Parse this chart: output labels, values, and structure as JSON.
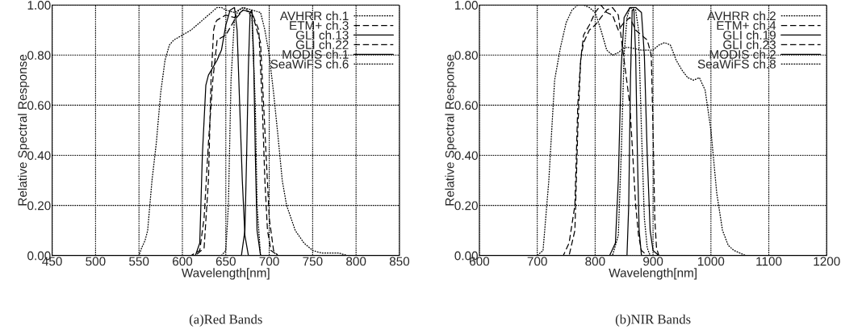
{
  "chart_data": [
    {
      "type": "line",
      "xlabel": "Wavelength[nm]",
      "ylabel": "Relative Spectral Response",
      "annotations": [
        "(a)Red Bands"
      ],
      "xlim": [
        450,
        850
      ],
      "xticks": [
        450,
        500,
        550,
        600,
        650,
        700,
        750,
        800,
        850
      ],
      "ylim": [
        0,
        1
      ],
      "yticks": [
        {
          "value": 0,
          "label": "0.00"
        },
        {
          "value": 0.2,
          "label": "0.20"
        },
        {
          "value": 0.4,
          "label": "0.40"
        },
        {
          "value": 0.6,
          "label": "0.60"
        },
        {
          "value": 0.8,
          "label": "0.80"
        },
        {
          "value": 1,
          "label": "1.00"
        }
      ],
      "grid": true,
      "legend": "top right",
      "marker": "none",
      "series": [
        {
          "name": "AVHRR ch.1",
          "color": "#000000",
          "line_style": "dotted",
          "x": [
            450,
            550,
            553,
            557,
            560,
            565,
            570,
            575,
            580,
            585,
            590,
            600,
            610,
            620,
            630,
            640,
            645,
            650,
            660,
            670,
            680,
            690,
            695,
            700,
            705,
            710,
            715,
            720,
            730,
            740,
            750,
            760,
            780,
            790,
            850
          ],
          "values": [
            0,
            0,
            0.03,
            0.06,
            0.1,
            0.3,
            0.45,
            0.65,
            0.78,
            0.84,
            0.86,
            0.88,
            0.9,
            0.93,
            0.96,
            0.99,
            0.99,
            0.98,
            0.97,
            0.99,
            0.98,
            0.97,
            0.9,
            0.8,
            0.65,
            0.48,
            0.3,
            0.2,
            0.1,
            0.05,
            0.02,
            0.01,
            0.01,
            0,
            0
          ]
        },
        {
          "name": "ETM+ ch.3",
          "color": "#000000",
          "line_style": "dashed",
          "x": [
            450,
            615,
            625,
            630,
            633,
            636,
            638,
            640,
            650,
            660,
            670,
            680,
            688,
            692,
            695,
            698,
            702,
            710,
            850
          ],
          "values": [
            0,
            0,
            0.03,
            0.3,
            0.7,
            0.9,
            0.93,
            0.94,
            0.96,
            0.95,
            0.98,
            0.97,
            0.9,
            0.6,
            0.3,
            0.1,
            0.02,
            0,
            0
          ]
        },
        {
          "name": "GLI ch.13",
          "color": "#000000",
          "line_style": "solid",
          "x": [
            450,
            668,
            672,
            674,
            676,
            678,
            680,
            682,
            684,
            686,
            690,
            850
          ],
          "values": [
            0,
            0,
            0.1,
            0.4,
            0.75,
            0.97,
            0.98,
            0.8,
            0.4,
            0.1,
            0,
            0
          ]
        },
        {
          "name": "GLI ch.22",
          "color": "#000000",
          "line_style": "dashed",
          "x": [
            450,
            610,
            620,
            625,
            630,
            635,
            640,
            645,
            650,
            660,
            670,
            680,
            690,
            695,
            700,
            705,
            710,
            850
          ],
          "values": [
            0,
            0,
            0.02,
            0.15,
            0.45,
            0.7,
            0.86,
            0.87,
            0.88,
            0.94,
            0.98,
            0.97,
            0.85,
            0.5,
            0.15,
            0.02,
            0,
            0
          ]
        },
        {
          "name": "MODIS ch.1",
          "color": "#000000",
          "line_style": "solid",
          "x": [
            450,
            615,
            620,
            623,
            627,
            630,
            640,
            645,
            650,
            655,
            660,
            663,
            666,
            669,
            672,
            676,
            850
          ],
          "values": [
            0,
            0,
            0.05,
            0.4,
            0.68,
            0.72,
            0.78,
            0.82,
            0.92,
            0.98,
            0.99,
            0.9,
            0.6,
            0.3,
            0.08,
            0,
            0
          ]
        },
        {
          "name": "SeaWiFS ch.6",
          "color": "#000000",
          "line_style": "dotted",
          "x": [
            450,
            645,
            650,
            653,
            656,
            660,
            665,
            670,
            675,
            680,
            684,
            686,
            690,
            850
          ],
          "values": [
            0,
            0,
            0.02,
            0.2,
            0.7,
            0.95,
            0.98,
            0.99,
            0.98,
            0.95,
            0.6,
            0.2,
            0,
            0
          ]
        }
      ]
    },
    {
      "type": "line",
      "xlabel": "Wavelength[nm]",
      "ylabel": "Relative Spectral Response",
      "annotations": [
        "(b)NIR Bands"
      ],
      "xlim": [
        600,
        1200
      ],
      "xticks": [
        600,
        700,
        800,
        900,
        1000,
        1100,
        1200
      ],
      "ylim": [
        0,
        1
      ],
      "yticks": [
        {
          "value": 0,
          "label": "0.00"
        },
        {
          "value": 0.2,
          "label": "0.20"
        },
        {
          "value": 0.4,
          "label": "0.40"
        },
        {
          "value": 0.6,
          "label": "0.60"
        },
        {
          "value": 0.8,
          "label": "0.80"
        },
        {
          "value": 1,
          "label": "1.00"
        }
      ],
      "grid": true,
      "legend": "top right",
      "marker": "none",
      "series": [
        {
          "name": "AVHRR ch.2",
          "color": "#000000",
          "line_style": "dotted",
          "x": [
            600,
            700,
            710,
            720,
            730,
            740,
            750,
            760,
            770,
            780,
            790,
            800,
            810,
            820,
            830,
            840,
            850,
            860,
            880,
            900,
            910,
            920,
            930,
            940,
            950,
            960,
            970,
            980,
            990,
            1000,
            1010,
            1020,
            1030,
            1040,
            1050,
            1060,
            1200
          ],
          "values": [
            0,
            0,
            0.02,
            0.3,
            0.7,
            0.83,
            0.93,
            0.98,
            1,
            1,
            0.99,
            0.97,
            0.9,
            0.82,
            0.8,
            0.81,
            0.83,
            0.83,
            0.82,
            0.82,
            0.84,
            0.85,
            0.84,
            0.78,
            0.74,
            0.71,
            0.7,
            0.71,
            0.66,
            0.5,
            0.25,
            0.1,
            0.04,
            0.02,
            0.01,
            0,
            0
          ]
        },
        {
          "name": "ETM+ ch.4",
          "color": "#000000",
          "line_style": "dashed",
          "x": [
            600,
            755,
            765,
            770,
            775,
            780,
            790,
            800,
            810,
            820,
            830,
            840,
            850,
            860,
            870,
            880,
            890,
            897,
            900,
            903,
            906,
            910,
            1200
          ],
          "values": [
            0,
            0,
            0.1,
            0.5,
            0.78,
            0.88,
            0.92,
            0.97,
            1,
            0.97,
            0.96,
            0.9,
            0.93,
            0.95,
            0.9,
            0.88,
            0.86,
            0.8,
            0.5,
            0.15,
            0.03,
            0,
            0
          ]
        },
        {
          "name": "GLI ch.19",
          "color": "#000000",
          "line_style": "solid",
          "x": [
            600,
            855,
            858,
            861,
            864,
            867,
            870,
            873,
            876,
            880,
            1200
          ],
          "values": [
            0,
            0,
            0.2,
            0.7,
            0.98,
            0.98,
            0.8,
            0.4,
            0.1,
            0,
            0
          ]
        },
        {
          "name": "GLI ch.23",
          "color": "#000000",
          "line_style": "dashed",
          "x": [
            600,
            745,
            755,
            765,
            770,
            775,
            780,
            790,
            800,
            810,
            820,
            830,
            840,
            850,
            860,
            865,
            870,
            875,
            880,
            885,
            890,
            1200
          ],
          "values": [
            0,
            0,
            0.05,
            0.2,
            0.6,
            0.78,
            0.85,
            0.9,
            0.92,
            0.95,
            0.98,
            0.99,
            0.96,
            0.78,
            0.6,
            0.4,
            0.2,
            0.08,
            0.02,
            0.01,
            0,
            0
          ]
        },
        {
          "name": "MODIS ch.2",
          "color": "#000000",
          "line_style": "solid",
          "x": [
            600,
            825,
            835,
            840,
            845,
            850,
            860,
            870,
            880,
            885,
            890,
            895,
            900,
            910,
            1200
          ],
          "values": [
            0,
            0,
            0.05,
            0.3,
            0.75,
            0.95,
            0.99,
            0.99,
            0.97,
            0.8,
            0.4,
            0.1,
            0.02,
            0,
            0
          ]
        },
        {
          "name": "SeaWiFS ch.8",
          "color": "#000000",
          "line_style": "dotted",
          "x": [
            600,
            830,
            840,
            845,
            850,
            855,
            860,
            870,
            875,
            880,
            885,
            890,
            895,
            1200
          ],
          "values": [
            0,
            0,
            0.08,
            0.4,
            0.8,
            0.95,
            0.99,
            0.98,
            0.9,
            0.5,
            0.15,
            0.03,
            0,
            0
          ]
        }
      ]
    }
  ]
}
